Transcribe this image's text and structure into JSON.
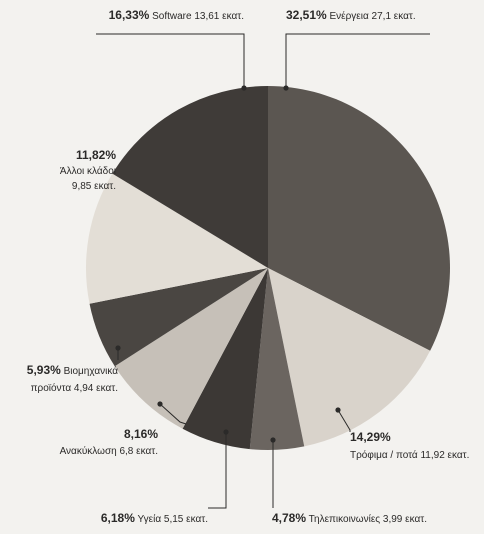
{
  "chart_data": {
    "type": "pie",
    "slices": [
      {
        "percent_label": "32,51%",
        "text": "Ενέργεια 27,1 εκατ.",
        "value": 27.1,
        "percent": 32.51,
        "color": "#5b5651"
      },
      {
        "percent_label": "14,29%",
        "text": "Τρόφιμα / ποτά 11,92 εκατ.",
        "value": 11.92,
        "percent": 14.29,
        "color": "#d9d3cb"
      },
      {
        "percent_label": "4,78%",
        "text": "Τηλεπικοινωνίες 3,99 εκατ.",
        "value": 3.99,
        "percent": 4.78,
        "color": "#6b6560"
      },
      {
        "percent_label": "6,18%",
        "text": "Υγεία 5,15 εκατ.",
        "value": 5.15,
        "percent": 6.18,
        "color": "#3c3835"
      },
      {
        "percent_label": "8,16%",
        "text": "Ανακύκλωση 6,8 εκατ.",
        "value": 6.8,
        "percent": 8.16,
        "color": "#c6c0b8"
      },
      {
        "percent_label": "5,93%",
        "text": "Βιομηχανικά προϊόντα 4,94 εκατ.",
        "value": 4.94,
        "percent": 5.93,
        "color": "#4a4642"
      },
      {
        "percent_label": "11,82%",
        "text": "Άλλοι κλάδοι 9,85 εκατ.",
        "value": 9.85,
        "percent": 11.82,
        "color": "#e3ded6"
      },
      {
        "percent_label": "16,33%",
        "text": "Software 13,61 εκατ.",
        "value": 13.61,
        "percent": 16.33,
        "color": "#3f3b38"
      }
    ]
  }
}
